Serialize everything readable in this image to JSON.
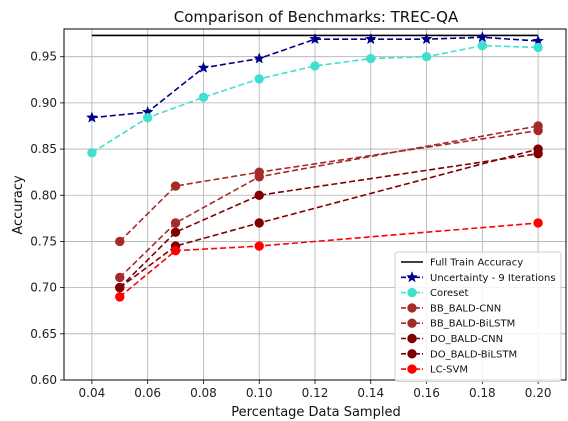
{
  "chart_data": {
    "type": "line",
    "title": "Comparison of Benchmarks: TREC-QA",
    "xlabel": "Percentage Data Sampled",
    "ylabel": "Accuracy",
    "xlim": [
      0.03,
      0.21
    ],
    "ylim": [
      0.6,
      0.98
    ],
    "xticks": [
      0.04,
      0.06,
      0.08,
      0.1,
      0.12,
      0.14,
      0.16,
      0.18,
      0.2
    ],
    "xtick_labels": [
      "0.04",
      "0.06",
      "0.08",
      "0.10",
      "0.12",
      "0.14",
      "0.16",
      "0.18",
      "0.20"
    ],
    "yticks": [
      0.6,
      0.65,
      0.7,
      0.75,
      0.8,
      0.85,
      0.9,
      0.95
    ],
    "ytick_labels": [
      "0.60",
      "0.65",
      "0.70",
      "0.75",
      "0.80",
      "0.85",
      "0.90",
      "0.95"
    ],
    "grid": true,
    "legend_position": "lower-right",
    "series": [
      {
        "name": "Full Train Accuracy",
        "color": "#000000",
        "dash": "solid",
        "marker": "none",
        "x": [
          0.04,
          0.2
        ],
        "y": [
          0.973,
          0.973
        ]
      },
      {
        "name": "Uncertainty - 9 Iterations",
        "color": "#00008b",
        "dash": "dashed",
        "marker": "star",
        "x": [
          0.04,
          0.06,
          0.08,
          0.1,
          0.12,
          0.14,
          0.16,
          0.18,
          0.2
        ],
        "y": [
          0.884,
          0.89,
          0.938,
          0.948,
          0.969,
          0.969,
          0.969,
          0.971,
          0.967
        ]
      },
      {
        "name": "Coreset",
        "color": "#40e0d0",
        "dash": "dashed",
        "marker": "circle",
        "x": [
          0.04,
          0.06,
          0.08,
          0.1,
          0.12,
          0.14,
          0.16,
          0.18,
          0.2
        ],
        "y": [
          0.846,
          0.884,
          0.906,
          0.926,
          0.94,
          0.948,
          0.95,
          0.962,
          0.96
        ]
      },
      {
        "name": "BB_BALD-CNN",
        "color": "#a52a2a",
        "dash": "dashed",
        "marker": "circle",
        "x": [
          0.05,
          0.07,
          0.1,
          0.2
        ],
        "y": [
          0.75,
          0.81,
          0.825,
          0.87
        ]
      },
      {
        "name": "BB_BALD-BiLSTM",
        "color": "#a52a2a",
        "dash": "dashed",
        "marker": "circle",
        "x": [
          0.05,
          0.07,
          0.1,
          0.2
        ],
        "y": [
          0.711,
          0.77,
          0.82,
          0.875
        ]
      },
      {
        "name": "DO_BALD-CNN",
        "color": "#800000",
        "dash": "dashed",
        "marker": "circle",
        "x": [
          0.05,
          0.07,
          0.1,
          0.2
        ],
        "y": [
          0.7,
          0.76,
          0.8,
          0.845
        ]
      },
      {
        "name": "DO_BALD-BiLSTM",
        "color": "#800000",
        "dash": "dashed",
        "marker": "circle",
        "x": [
          0.05,
          0.07,
          0.1,
          0.2
        ],
        "y": [
          0.7,
          0.745,
          0.77,
          0.85
        ]
      },
      {
        "name": "LC-SVM",
        "color": "#ff0000",
        "dash": "dashed",
        "marker": "circle",
        "x": [
          0.05,
          0.07,
          0.1,
          0.2
        ],
        "y": [
          0.69,
          0.74,
          0.745,
          0.77
        ]
      }
    ]
  }
}
